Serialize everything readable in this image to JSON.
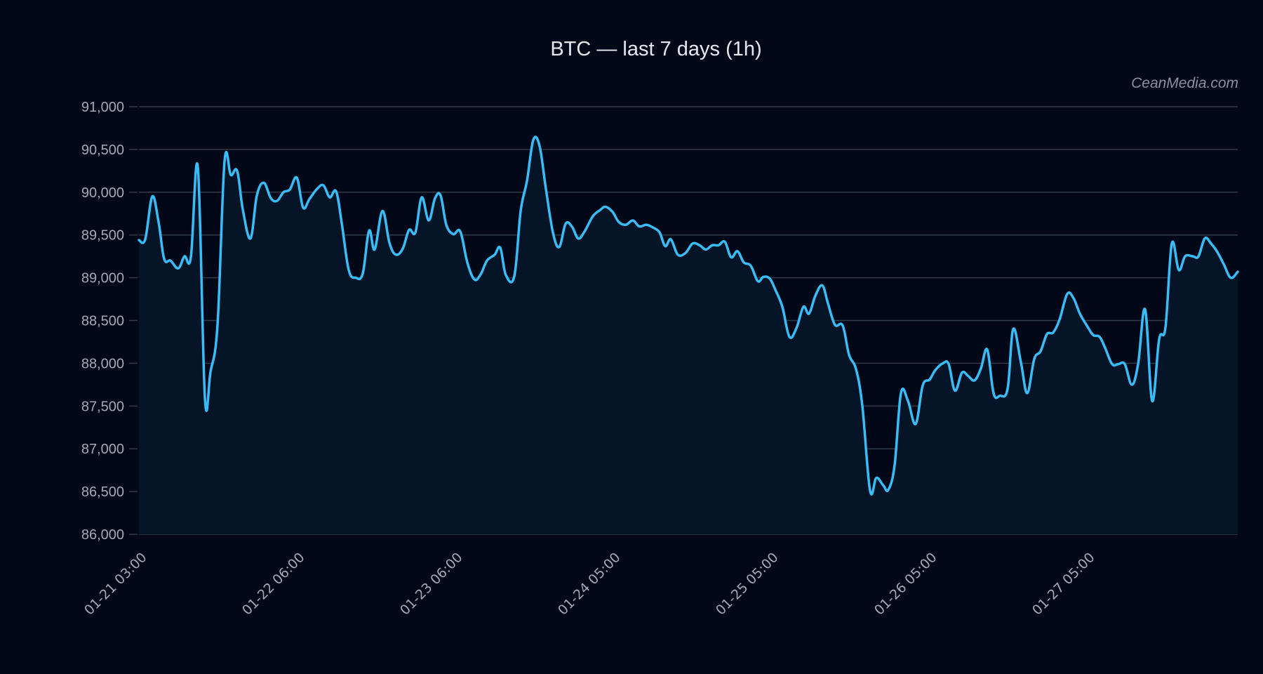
{
  "header": {
    "title": "BTC — last 7 days (1h)",
    "watermark": "CeanMedia.com"
  },
  "colors": {
    "background": "#020817",
    "plot_background": "#061427",
    "line": "#38bdf8",
    "grid": "#2f3a4a",
    "tick_label": "#a3a9b5",
    "title": "#e6e8ee"
  },
  "chart_data": {
    "type": "area",
    "title": "BTC — last 7 days (1h)",
    "xlabel": "",
    "ylabel": "",
    "ylim": [
      86000,
      91000
    ],
    "grid": true,
    "legend": null,
    "y_ticks": [
      "91,000",
      "90,500",
      "90,000",
      "89,500",
      "89,000",
      "88,500",
      "88,000",
      "87,500",
      "87,000",
      "86,500",
      "86,000"
    ],
    "x_ticks": [
      "01-21 03:00",
      "01-22 06:00",
      "01-23 06:00",
      "01-24 05:00",
      "01-25 05:00",
      "01-26 05:00",
      "01-27 05:00"
    ],
    "series": [
      {
        "name": "BTC",
        "points": [
          [
            198,
            89440
          ],
          [
            207,
            89450
          ],
          [
            217,
            89950
          ],
          [
            226,
            89650
          ],
          [
            234,
            89220
          ],
          [
            243,
            89200
          ],
          [
            254,
            89110
          ],
          [
            263,
            89250
          ],
          [
            272,
            89240
          ],
          [
            282,
            90290
          ],
          [
            292,
            87600
          ],
          [
            300,
            87900
          ],
          [
            310,
            88450
          ],
          [
            320,
            90360
          ],
          [
            329,
            90200
          ],
          [
            338,
            90250
          ],
          [
            346,
            89800
          ],
          [
            357,
            89460
          ],
          [
            366,
            89960
          ],
          [
            376,
            90110
          ],
          [
            386,
            89930
          ],
          [
            395,
            89900
          ],
          [
            404,
            90000
          ],
          [
            413,
            90030
          ],
          [
            423,
            90170
          ],
          [
            432,
            89820
          ],
          [
            441,
            89920
          ],
          [
            452,
            90040
          ],
          [
            461,
            90080
          ],
          [
            470,
            89940
          ],
          [
            479,
            90010
          ],
          [
            487,
            89640
          ],
          [
            497,
            89090
          ],
          [
            507,
            89000
          ],
          [
            517,
            89050
          ],
          [
            526,
            89550
          ],
          [
            534,
            89330
          ],
          [
            545,
            89780
          ],
          [
            555,
            89410
          ],
          [
            564,
            89270
          ],
          [
            574,
            89340
          ],
          [
            583,
            89560
          ],
          [
            592,
            89530
          ],
          [
            601,
            89940
          ],
          [
            611,
            89670
          ],
          [
            620,
            89930
          ],
          [
            628,
            89960
          ],
          [
            636,
            89620
          ],
          [
            646,
            89510
          ],
          [
            656,
            89540
          ],
          [
            666,
            89180
          ],
          [
            676,
            88980
          ],
          [
            685,
            89040
          ],
          [
            694,
            89200
          ],
          [
            705,
            89270
          ],
          [
            713,
            89350
          ],
          [
            721,
            89030
          ],
          [
            733,
            89020
          ],
          [
            742,
            89780
          ],
          [
            751,
            90130
          ],
          [
            760,
            90610
          ],
          [
            769,
            90540
          ],
          [
            778,
            90040
          ],
          [
            788,
            89530
          ],
          [
            797,
            89360
          ],
          [
            806,
            89630
          ],
          [
            815,
            89600
          ],
          [
            824,
            89460
          ],
          [
            833,
            89540
          ],
          [
            845,
            89720
          ],
          [
            855,
            89790
          ],
          [
            863,
            89830
          ],
          [
            873,
            89770
          ],
          [
            882,
            89650
          ],
          [
            892,
            89620
          ],
          [
            902,
            89670
          ],
          [
            911,
            89600
          ],
          [
            921,
            89620
          ],
          [
            930,
            89590
          ],
          [
            940,
            89530
          ],
          [
            948,
            89370
          ],
          [
            956,
            89450
          ],
          [
            966,
            89270
          ],
          [
            977,
            89290
          ],
          [
            987,
            89400
          ],
          [
            997,
            89380
          ],
          [
            1006,
            89330
          ],
          [
            1015,
            89380
          ],
          [
            1024,
            89380
          ],
          [
            1033,
            89420
          ],
          [
            1042,
            89240
          ],
          [
            1051,
            89310
          ],
          [
            1060,
            89180
          ],
          [
            1070,
            89140
          ],
          [
            1080,
            88960
          ],
          [
            1088,
            89010
          ],
          [
            1097,
            88990
          ],
          [
            1105,
            88860
          ],
          [
            1115,
            88660
          ],
          [
            1125,
            88310
          ],
          [
            1135,
            88410
          ],
          [
            1145,
            88660
          ],
          [
            1153,
            88580
          ],
          [
            1162,
            88790
          ],
          [
            1172,
            88910
          ],
          [
            1180,
            88700
          ],
          [
            1190,
            88450
          ],
          [
            1201,
            88440
          ],
          [
            1210,
            88100
          ],
          [
            1220,
            87930
          ],
          [
            1229,
            87500
          ],
          [
            1240,
            86510
          ],
          [
            1249,
            86660
          ],
          [
            1259,
            86570
          ],
          [
            1266,
            86520
          ],
          [
            1275,
            86810
          ],
          [
            1284,
            87650
          ],
          [
            1294,
            87560
          ],
          [
            1305,
            87290
          ],
          [
            1315,
            87740
          ],
          [
            1325,
            87810
          ],
          [
            1333,
            87920
          ],
          [
            1344,
            88000
          ],
          [
            1352,
            87990
          ],
          [
            1361,
            87680
          ],
          [
            1371,
            87890
          ],
          [
            1380,
            87850
          ],
          [
            1389,
            87800
          ],
          [
            1398,
            87940
          ],
          [
            1407,
            88160
          ],
          [
            1416,
            87650
          ],
          [
            1425,
            87620
          ],
          [
            1436,
            87700
          ],
          [
            1444,
            88400
          ],
          [
            1455,
            88010
          ],
          [
            1464,
            87650
          ],
          [
            1474,
            88050
          ],
          [
            1483,
            88140
          ],
          [
            1492,
            88340
          ],
          [
            1501,
            88360
          ],
          [
            1510,
            88510
          ],
          [
            1521,
            88810
          ],
          [
            1530,
            88760
          ],
          [
            1539,
            88580
          ],
          [
            1549,
            88440
          ],
          [
            1558,
            88330
          ],
          [
            1567,
            88310
          ],
          [
            1575,
            88180
          ],
          [
            1585,
            87990
          ],
          [
            1594,
            87990
          ],
          [
            1603,
            87990
          ],
          [
            1613,
            87750
          ],
          [
            1622,
            87990
          ],
          [
            1632,
            88630
          ],
          [
            1642,
            87560
          ],
          [
            1652,
            88280
          ],
          [
            1661,
            88420
          ],
          [
            1670,
            89400
          ],
          [
            1680,
            89090
          ],
          [
            1689,
            89250
          ],
          [
            1700,
            89250
          ],
          [
            1708,
            89250
          ],
          [
            1717,
            89460
          ],
          [
            1726,
            89400
          ],
          [
            1735,
            89300
          ],
          [
            1744,
            89160
          ],
          [
            1754,
            89000
          ],
          [
            1764,
            89070
          ]
        ],
        "points_note": "[pixel_x, price_usd] pairs traced from the plotted line; x pixel maps to time between first/last ticks"
      }
    ],
    "approx_stats": {
      "start": 89440,
      "end": 89070,
      "high": 90610,
      "low": 86510
    }
  }
}
